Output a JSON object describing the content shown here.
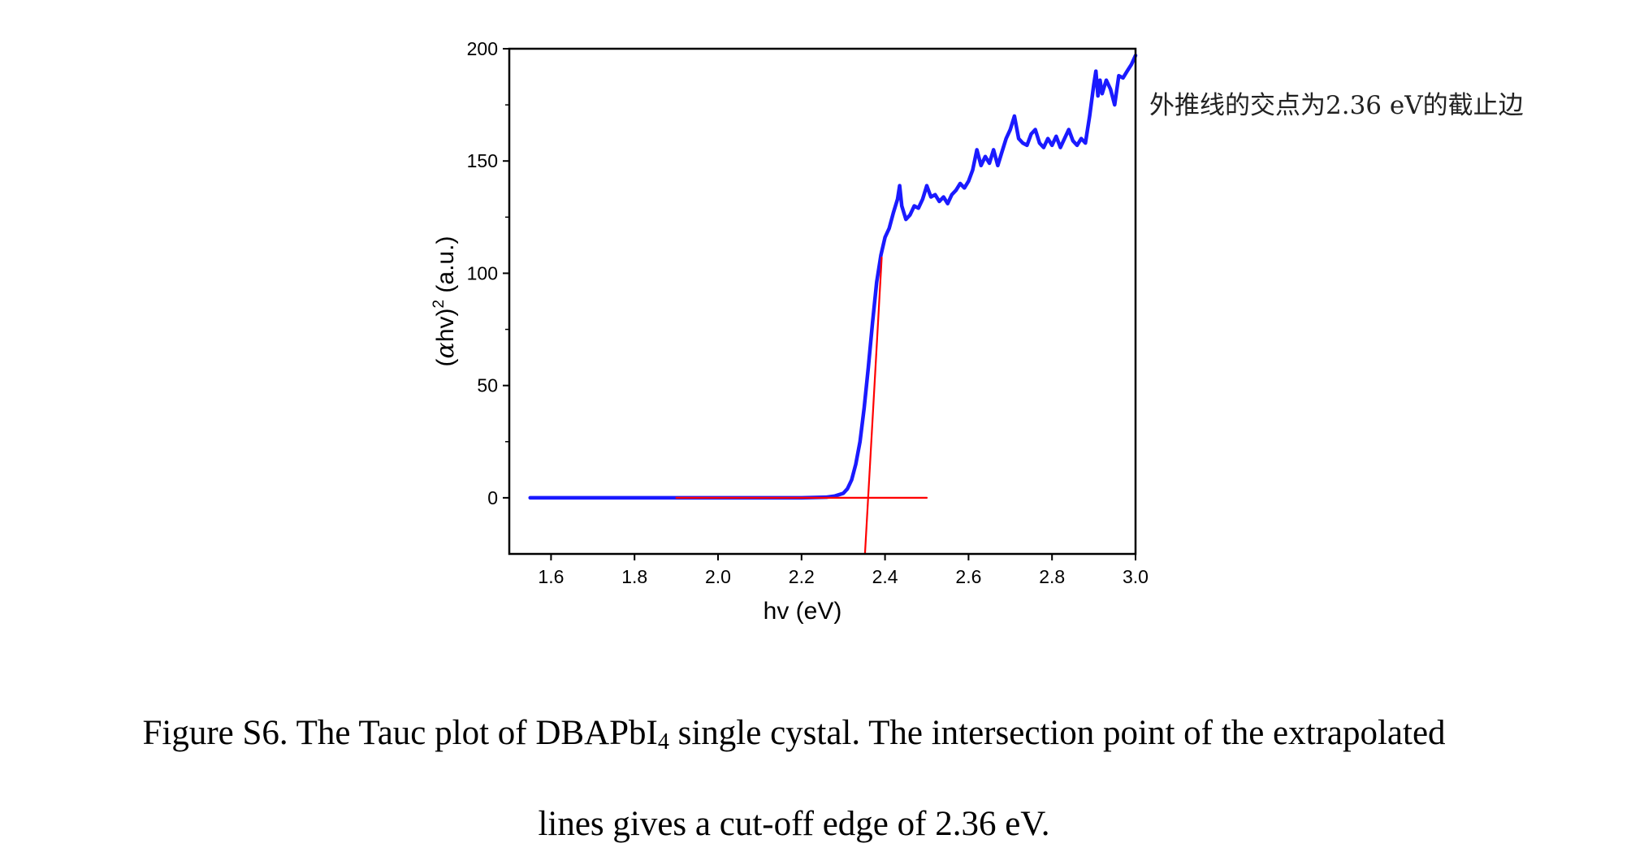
{
  "chart_data": {
    "type": "line",
    "xlabel": "hv (eV)",
    "ylabel": "(αhv)² (a.u.)",
    "ylabel_parts": {
      "pre": "(",
      "alpha": "α",
      "mid": "hv)",
      "sup": "2",
      "post": " (a.u.)"
    },
    "xlim": [
      1.5,
      3.0
    ],
    "ylim": [
      -25,
      200
    ],
    "x_ticks": [
      "1.6",
      "1.8",
      "2.0",
      "2.2",
      "2.4",
      "2.6",
      "2.8",
      "3.0"
    ],
    "y_ticks": [
      "0",
      "50",
      "100",
      "150",
      "200"
    ],
    "grid": false,
    "legend": "none",
    "annotation": "外推线的交点为2.36 eV的截止边",
    "colors": {
      "data_series": "#1a1aff",
      "fit_lines": "#ff0000",
      "axes": "#000000"
    },
    "series": [
      {
        "style": "thick blue line",
        "x": [
          1.55,
          1.6,
          1.7,
          1.8,
          1.9,
          2.0,
          2.1,
          2.2,
          2.26,
          2.28,
          2.3,
          2.31,
          2.32,
          2.33,
          2.34,
          2.35,
          2.36,
          2.37,
          2.38,
          2.39,
          2.4,
          2.41,
          2.42,
          2.43,
          2.435,
          2.44,
          2.45,
          2.46,
          2.47,
          2.48,
          2.49,
          2.5,
          2.51,
          2.52,
          2.53,
          2.54,
          2.55,
          2.56,
          2.57,
          2.58,
          2.59,
          2.6,
          2.61,
          2.62,
          2.63,
          2.64,
          2.65,
          2.66,
          2.67,
          2.68,
          2.69,
          2.7,
          2.71,
          2.72,
          2.73,
          2.74,
          2.75,
          2.76,
          2.77,
          2.78,
          2.79,
          2.8,
          2.81,
          2.82,
          2.83,
          2.84,
          2.85,
          2.86,
          2.87,
          2.88,
          2.89,
          2.9,
          2.905,
          2.91,
          2.915,
          2.92,
          2.93,
          2.94,
          2.95,
          2.96,
          2.97,
          2.98,
          2.99,
          3.0
        ],
        "y": [
          0,
          0,
          0,
          0,
          0,
          0,
          0,
          0,
          0.3,
          0.8,
          2,
          4,
          8,
          15,
          25,
          40,
          58,
          78,
          96,
          108,
          116,
          120,
          127,
          133,
          139,
          130,
          124,
          126,
          130,
          129,
          133,
          139,
          134,
          135,
          132,
          134,
          131,
          135,
          137,
          140,
          138,
          141,
          146,
          155,
          148,
          152,
          149,
          155,
          148,
          154,
          160,
          164,
          170,
          160,
          158,
          157,
          162,
          164,
          158,
          156,
          160,
          157,
          161,
          156,
          160,
          164,
          159,
          157,
          160,
          158,
          170,
          184,
          190,
          179,
          186,
          180,
          186,
          182,
          175,
          188,
          187,
          190,
          193,
          197
        ]
      },
      {
        "style": "thin red line, linear fit of absorption edge",
        "x": [
          2.352,
          2.392
        ],
        "y": [
          -25,
          107
        ]
      },
      {
        "style": "thin red line, baseline fit",
        "x": [
          1.9,
          2.5
        ],
        "y": [
          0,
          0
        ]
      }
    ]
  },
  "caption": {
    "line1_prefix": "Figure S6. The Tauc plot of DBAPbI",
    "line1_subscript": "4",
    "line1_suffix": " single cystal. The intersection point of the extrapolated",
    "line2": "lines gives a cut-off edge of 2.36 eV."
  }
}
